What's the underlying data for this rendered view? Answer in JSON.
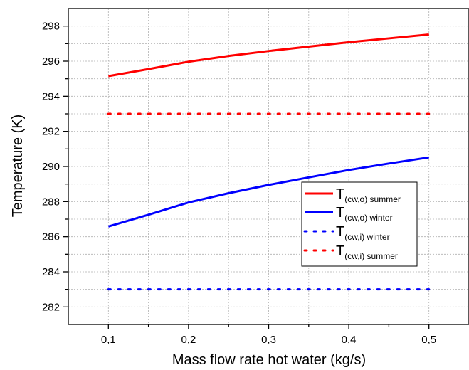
{
  "chart_data": {
    "type": "line",
    "title": "",
    "xlabel": "Mass flow rate hot water (kg/s)",
    "ylabel": "Temperature (K)",
    "xlim": [
      0.05,
      0.55
    ],
    "ylim": [
      281,
      299
    ],
    "grid": true,
    "legend_position": "center-right",
    "x_ticks": [
      0.1,
      0.2,
      0.3,
      0.4,
      0.5
    ],
    "x_tick_labels": [
      "0,1",
      "0,2",
      "0,3",
      "0,4",
      "0,5"
    ],
    "y_ticks": [
      282,
      284,
      286,
      288,
      290,
      292,
      294,
      296,
      298
    ],
    "y_tick_labels": [
      "282",
      "284",
      "286",
      "288",
      "290",
      "292",
      "294",
      "296",
      "298"
    ],
    "series": [
      {
        "name_main": "T",
        "name_sub": "(cw,o) summer",
        "color": "#ff0000",
        "style": "solid",
        "x": [
          0.1,
          0.15,
          0.2,
          0.25,
          0.3,
          0.35,
          0.4,
          0.45,
          0.5
        ],
        "y": [
          295.15,
          295.55,
          295.97,
          296.3,
          296.58,
          296.83,
          297.08,
          297.3,
          297.52
        ]
      },
      {
        "name_main": "T",
        "name_sub": "(cw,o) winter",
        "color": "#0000ff",
        "style": "solid",
        "x": [
          0.1,
          0.15,
          0.2,
          0.25,
          0.3,
          0.35,
          0.4,
          0.45,
          0.5
        ],
        "y": [
          286.58,
          287.25,
          287.95,
          288.48,
          288.95,
          289.38,
          289.8,
          290.17,
          290.52
        ]
      },
      {
        "name_main": "T",
        "name_sub": "(cw,i) winter",
        "color": "#0000ff",
        "style": "dotted",
        "x": [
          0.1,
          0.5
        ],
        "y": [
          283.0,
          283.0
        ]
      },
      {
        "name_main": "T",
        "name_sub": "(cw,i) summer",
        "color": "#ff0000",
        "style": "dotted",
        "x": [
          0.1,
          0.5
        ],
        "y": [
          293.0,
          293.0
        ]
      }
    ]
  }
}
